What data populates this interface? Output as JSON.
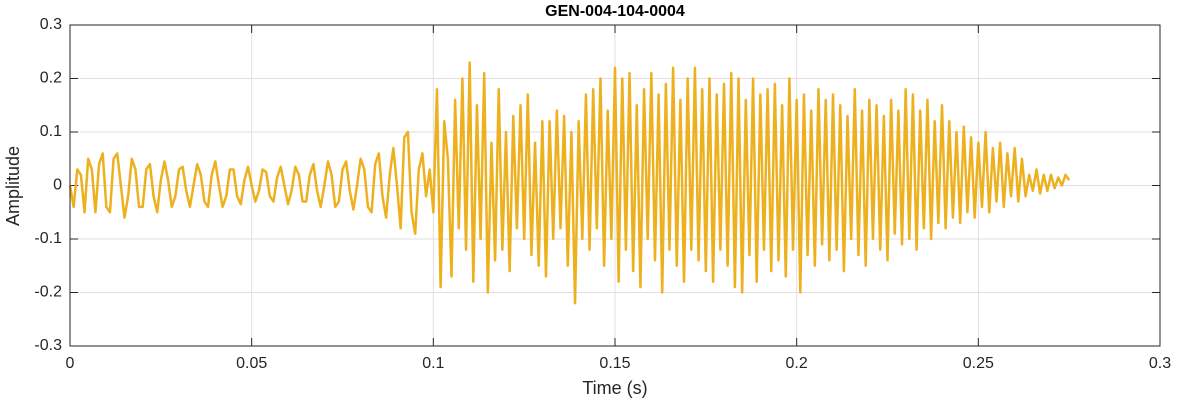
{
  "chart_data": {
    "type": "line",
    "title": "GEN-004-104-0004",
    "xlabel": "Time (s)",
    "ylabel": "Amplitude",
    "xlim": [
      0,
      0.3
    ],
    "xticks": [
      0,
      0.05,
      0.1,
      0.15,
      0.2,
      0.25,
      0.3
    ],
    "ylim": [
      -0.3,
      0.3
    ],
    "yticks": [
      -0.3,
      -0.2,
      -0.1,
      0,
      0.1,
      0.2,
      0.3
    ],
    "grid": true,
    "x": [
      0,
      0.001,
      0.002,
      0.003,
      0.004,
      0.005,
      0.006,
      0.007,
      0.008,
      0.009,
      0.01,
      0.011,
      0.012,
      0.013,
      0.014,
      0.015,
      0.016,
      0.017,
      0.018,
      0.019,
      0.02,
      0.021,
      0.022,
      0.023,
      0.024,
      0.025,
      0.026,
      0.027,
      0.028,
      0.029,
      0.03,
      0.031,
      0.032,
      0.033,
      0.034,
      0.035,
      0.036,
      0.037,
      0.038,
      0.039,
      0.04,
      0.041,
      0.042,
      0.043,
      0.044,
      0.045,
      0.046,
      0.047,
      0.048,
      0.049,
      0.05,
      0.051,
      0.052,
      0.053,
      0.054,
      0.055,
      0.056,
      0.057,
      0.058,
      0.059,
      0.06,
      0.061,
      0.062,
      0.063,
      0.064,
      0.065,
      0.066,
      0.067,
      0.068,
      0.069,
      0.07,
      0.071,
      0.072,
      0.073,
      0.074,
      0.075,
      0.076,
      0.077,
      0.078,
      0.079,
      0.08,
      0.081,
      0.082,
      0.083,
      0.084,
      0.085,
      0.086,
      0.087,
      0.088,
      0.089,
      0.09,
      0.091,
      0.092,
      0.093,
      0.094,
      0.095,
      0.096,
      0.097,
      0.098,
      0.099,
      0.1,
      0.101,
      0.102,
      0.103,
      0.104,
      0.105,
      0.106,
      0.107,
      0.108,
      0.109,
      0.11,
      0.111,
      0.112,
      0.113,
      0.114,
      0.115,
      0.116,
      0.117,
      0.118,
      0.119,
      0.12,
      0.121,
      0.122,
      0.123,
      0.124,
      0.125,
      0.126,
      0.127,
      0.128,
      0.129,
      0.13,
      0.131,
      0.132,
      0.133,
      0.134,
      0.135,
      0.136,
      0.137,
      0.138,
      0.139,
      0.14,
      0.141,
      0.142,
      0.143,
      0.144,
      0.145,
      0.146,
      0.147,
      0.148,
      0.149,
      0.15,
      0.151,
      0.152,
      0.153,
      0.154,
      0.155,
      0.156,
      0.157,
      0.158,
      0.159,
      0.16,
      0.161,
      0.162,
      0.163,
      0.164,
      0.165,
      0.166,
      0.167,
      0.168,
      0.169,
      0.17,
      0.171,
      0.172,
      0.173,
      0.174,
      0.175,
      0.176,
      0.177,
      0.178,
      0.179,
      0.18,
      0.181,
      0.182,
      0.183,
      0.184,
      0.185,
      0.186,
      0.187,
      0.188,
      0.189,
      0.19,
      0.191,
      0.192,
      0.193,
      0.194,
      0.195,
      0.196,
      0.197,
      0.198,
      0.199,
      0.2,
      0.201,
      0.202,
      0.203,
      0.204,
      0.205,
      0.206,
      0.207,
      0.208,
      0.209,
      0.21,
      0.211,
      0.212,
      0.213,
      0.214,
      0.215,
      0.216,
      0.217,
      0.218,
      0.219,
      0.22,
      0.221,
      0.222,
      0.223,
      0.224,
      0.225,
      0.226,
      0.227,
      0.228,
      0.229,
      0.23,
      0.231,
      0.232,
      0.233,
      0.234,
      0.235,
      0.236,
      0.237,
      0.238,
      0.239,
      0.24,
      0.241,
      0.242,
      0.243,
      0.244,
      0.245,
      0.246,
      0.247,
      0.248,
      0.249,
      0.25,
      0.251,
      0.252,
      0.253,
      0.254,
      0.255,
      0.256,
      0.257,
      0.258,
      0.259,
      0.26,
      0.261,
      0.262,
      0.263,
      0.264,
      0.265,
      0.266,
      0.267,
      0.268,
      0.269,
      0.27,
      0.271,
      0.272,
      0.273,
      0.274,
      0.275
    ],
    "series": [
      {
        "name": "GEN-004-104-0004",
        "color": "#EDB120",
        "values": [
          0,
          -0.04,
          0.03,
          0.02,
          -0.05,
          0.05,
          0.03,
          -0.05,
          0.04,
          0.06,
          -0.04,
          -0.05,
          0.05,
          0.06,
          0,
          -0.06,
          -0.02,
          0.05,
          0.03,
          -0.04,
          -0.04,
          0.03,
          0.04,
          -0.02,
          -0.05,
          0.01,
          0.045,
          0.01,
          -0.04,
          -0.02,
          0.03,
          0.035,
          -0.01,
          -0.04,
          0,
          0.04,
          0.02,
          -0.03,
          -0.04,
          0.02,
          0.045,
          0,
          -0.04,
          -0.02,
          0.03,
          0.03,
          -0.02,
          -0.035,
          0.01,
          0.035,
          0,
          -0.03,
          -0.01,
          0.03,
          0.025,
          -0.02,
          -0.03,
          0.015,
          0.035,
          0,
          -0.035,
          -0.01,
          0.035,
          0.02,
          -0.03,
          -0.03,
          0.02,
          0.04,
          -0.01,
          -0.04,
          0,
          0.045,
          0.02,
          -0.04,
          -0.03,
          0.03,
          0.045,
          -0.01,
          -0.045,
          0,
          0.05,
          0.03,
          -0.04,
          -0.05,
          0.04,
          0.06,
          -0.02,
          -0.06,
          0.02,
          0.07,
          0,
          -0.08,
          0.09,
          0.1,
          -0.05,
          -0.09,
          0.03,
          0.06,
          -0.02,
          0.03,
          -0.05,
          0.18,
          -0.19,
          0.12,
          0.05,
          -0.17,
          0.16,
          -0.08,
          0.2,
          -0.12,
          0.23,
          -0.18,
          0.15,
          -0.1,
          0.21,
          -0.2,
          0.08,
          -0.14,
          0.18,
          -0.12,
          0.1,
          -0.16,
          0.13,
          -0.08,
          0.15,
          -0.1,
          0.17,
          -0.13,
          0.08,
          -0.15,
          0.12,
          -0.17,
          0.12,
          -0.1,
          0.14,
          -0.08,
          0.13,
          -0.15,
          0.1,
          -0.22,
          0.12,
          -0.1,
          0.17,
          -0.12,
          0.18,
          -0.08,
          0.2,
          -0.15,
          0.14,
          -0.1,
          0.22,
          -0.18,
          0.2,
          -0.12,
          0.21,
          -0.16,
          0.15,
          -0.19,
          0.18,
          -0.1,
          0.21,
          -0.14,
          0.17,
          -0.2,
          0.19,
          -0.12,
          0.22,
          -0.15,
          0.16,
          -0.18,
          0.2,
          -0.12,
          0.22,
          -0.14,
          0.18,
          -0.16,
          0.2,
          -0.18,
          0.17,
          -0.12,
          0.19,
          -0.15,
          0.21,
          -0.19,
          0.2,
          -0.2,
          0.16,
          -0.13,
          0.2,
          -0.18,
          0.17,
          -0.12,
          0.18,
          -0.16,
          0.19,
          -0.14,
          0.15,
          -0.17,
          0.2,
          -0.12,
          0.16,
          -0.2,
          0.17,
          -0.13,
          0.14,
          -0.15,
          0.18,
          -0.11,
          0.16,
          -0.14,
          0.17,
          -0.12,
          0.15,
          -0.16,
          0.13,
          -0.1,
          0.18,
          -0.13,
          0.14,
          -0.15,
          0.16,
          -0.1,
          0.15,
          -0.12,
          0.13,
          -0.14,
          0.16,
          -0.09,
          0.14,
          -0.11,
          0.18,
          -0.1,
          0.17,
          -0.12,
          0.14,
          -0.08,
          0.16,
          -0.1,
          0.12,
          -0.07,
          0.15,
          -0.08,
          0.12,
          -0.06,
          0.1,
          -0.07,
          0.11,
          -0.05,
          0.09,
          -0.06,
          0.08,
          -0.04,
          0.1,
          -0.05,
          0.07,
          -0.03,
          0.08,
          -0.04,
          0.06,
          -0.02,
          0.07,
          -0.03,
          0.05,
          -0.02,
          0.02,
          -0.01,
          0.03,
          -0.015,
          0.02,
          -0.01,
          0.02,
          -0.005,
          0.015,
          0,
          0.02,
          0.01
        ]
      }
    ]
  }
}
